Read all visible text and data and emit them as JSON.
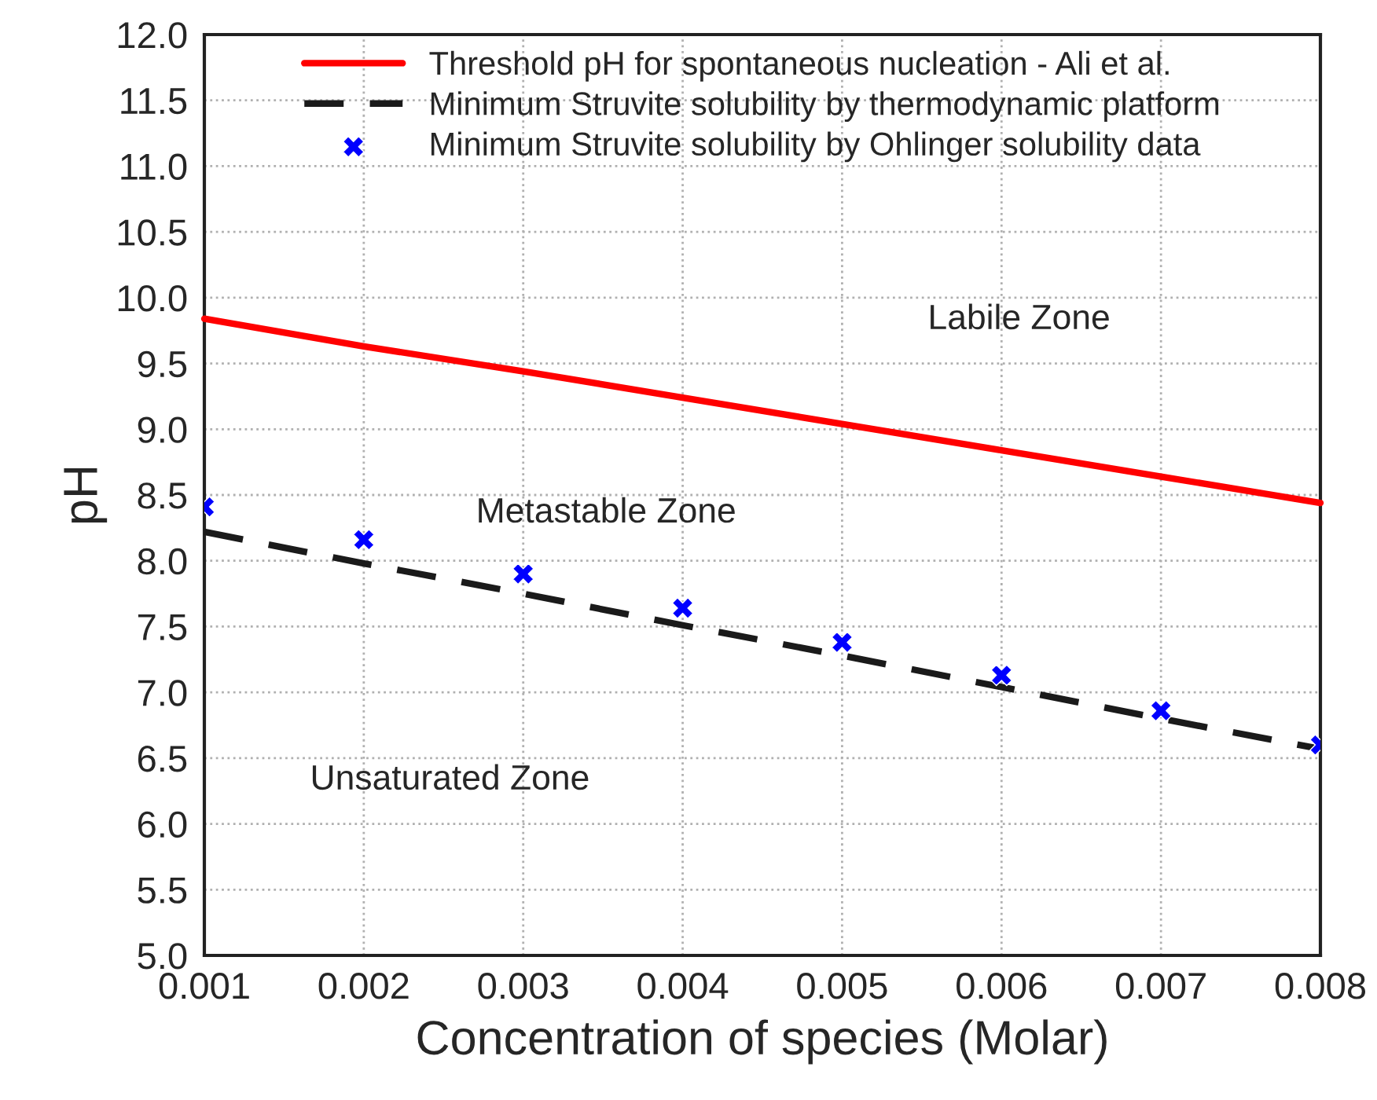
{
  "chart_data": {
    "type": "line",
    "xlabel": "Concentration of species (Molar)",
    "ylabel": "pH",
    "x": [
      0.001,
      0.002,
      0.003,
      0.004,
      0.005,
      0.006,
      0.007,
      0.008
    ],
    "series": [
      {
        "name": "Threshold pH for spontaneous nucleation - Ali et al.",
        "color": "#ff0000",
        "line_style": "solid",
        "marker": "none",
        "values": [
          9.84,
          9.63,
          9.44,
          9.24,
          9.04,
          8.84,
          8.64,
          8.44
        ]
      },
      {
        "name": "Minimum Struvite solubility by thermodynamic platform",
        "color": "#1a1a1a",
        "line_style": "dashed",
        "marker": "none",
        "values": [
          8.22,
          7.98,
          7.75,
          7.51,
          7.28,
          7.04,
          6.8,
          6.57
        ]
      },
      {
        "name": "Minimum Struvite solubility by Ohlinger solubility data",
        "color": "#0000ff",
        "type": "scatter",
        "marker": "cross",
        "values": [
          8.41,
          8.16,
          7.9,
          7.64,
          7.38,
          7.13,
          6.86,
          6.6
        ]
      }
    ],
    "xlim": [
      0.001,
      0.008
    ],
    "xticks": [
      0.001,
      0.002,
      0.003,
      0.004,
      0.005,
      0.006,
      0.007,
      0.008
    ],
    "ylim": [
      5,
      12
    ],
    "yticks": [
      {
        "value": 5,
        "label": "5.0"
      },
      5.5,
      {
        "value": 6,
        "label": "6.0"
      },
      6.5,
      {
        "value": 7,
        "label": "7.0"
      },
      7.5,
      {
        "value": 8,
        "label": "8.0"
      },
      8.5,
      {
        "value": 9,
        "label": "9.0"
      },
      9.5,
      {
        "value": 10,
        "label": "10.0"
      },
      10.5,
      {
        "value": 11,
        "label": "11.0"
      },
      11.5,
      {
        "value": 12,
        "label": "12.0"
      }
    ],
    "grid": true,
    "legend": "top",
    "annotations": [
      "Labile Zone",
      "Metastable Zone",
      "Unsaturated Zone"
    ]
  }
}
